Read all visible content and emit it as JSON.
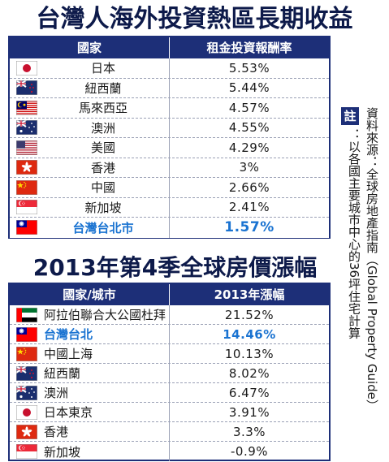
{
  "title1": "台灣人海外投資熱區長期收益",
  "title2": "2013年第4季全球房價漲幅",
  "table1": {
    "headers": [
      "國家",
      "租金投資報酬率"
    ],
    "rows": [
      {
        "flag": "japan",
        "name": "日本",
        "value": "5.53%"
      },
      {
        "flag": "new-zealand",
        "name": "紐西蘭",
        "value": "5.44%"
      },
      {
        "flag": "malaysia",
        "name": "馬來西亞",
        "value": "4.57%"
      },
      {
        "flag": "australia",
        "name": "澳洲",
        "value": "4.55%"
      },
      {
        "flag": "usa",
        "name": "美國",
        "value": "4.29%"
      },
      {
        "flag": "hong-kong",
        "name": "香港",
        "value": "3%"
      },
      {
        "flag": "china",
        "name": "中國",
        "value": "2.66%"
      },
      {
        "flag": "singapore",
        "name": "新加坡",
        "value": "2.41%"
      },
      {
        "flag": "taiwan",
        "name": "台灣台北市",
        "value": "1.57%",
        "highlight": true
      }
    ]
  },
  "table2": {
    "headers": [
      "國家/城市",
      "2013年漲幅"
    ],
    "rows": [
      {
        "flag": "uae",
        "name": "阿拉伯聯合大公國杜拜",
        "value": "21.52%"
      },
      {
        "flag": "taiwan",
        "name": "台灣台北",
        "value": "14.46%",
        "highlight": true
      },
      {
        "flag": "china",
        "name": "中國上海",
        "value": "10.13%"
      },
      {
        "flag": "new-zealand",
        "name": "紐西蘭",
        "value": "8.02%"
      },
      {
        "flag": "australia",
        "name": "澳洲",
        "value": "6.47%"
      },
      {
        "flag": "japan",
        "name": "日本東京",
        "value": "3.91%"
      },
      {
        "flag": "hong-kong",
        "name": "香港",
        "value": "3.3%"
      },
      {
        "flag": "singapore",
        "name": "新加坡",
        "value": "-0.9%"
      }
    ]
  },
  "note": {
    "badge": "註",
    "line1": "資料來源：全球房地產指南（Global Property Guide）",
    "line2": "：以各國主要城市中心的36坪住宅計算"
  },
  "chart_data": [
    {
      "type": "table",
      "title": "台灣人海外投資熱區長期收益",
      "columns": [
        "國家",
        "租金投資報酬率"
      ],
      "categories": [
        "日本",
        "紐西蘭",
        "馬來西亞",
        "澳洲",
        "美國",
        "香港",
        "中國",
        "新加坡",
        "台灣台北市"
      ],
      "values": [
        5.53,
        5.44,
        4.57,
        4.55,
        4.29,
        3,
        2.66,
        2.41,
        1.57
      ]
    },
    {
      "type": "table",
      "title": "2013年第4季全球房價漲幅",
      "columns": [
        "國家/城市",
        "2013年漲幅"
      ],
      "categories": [
        "阿拉伯聯合大公國杜拜",
        "台灣台北",
        "中國上海",
        "紐西蘭",
        "澳洲",
        "日本東京",
        "香港",
        "新加坡"
      ],
      "values": [
        21.52,
        14.46,
        10.13,
        8.02,
        6.47,
        3.91,
        3.3,
        -0.9
      ]
    }
  ]
}
